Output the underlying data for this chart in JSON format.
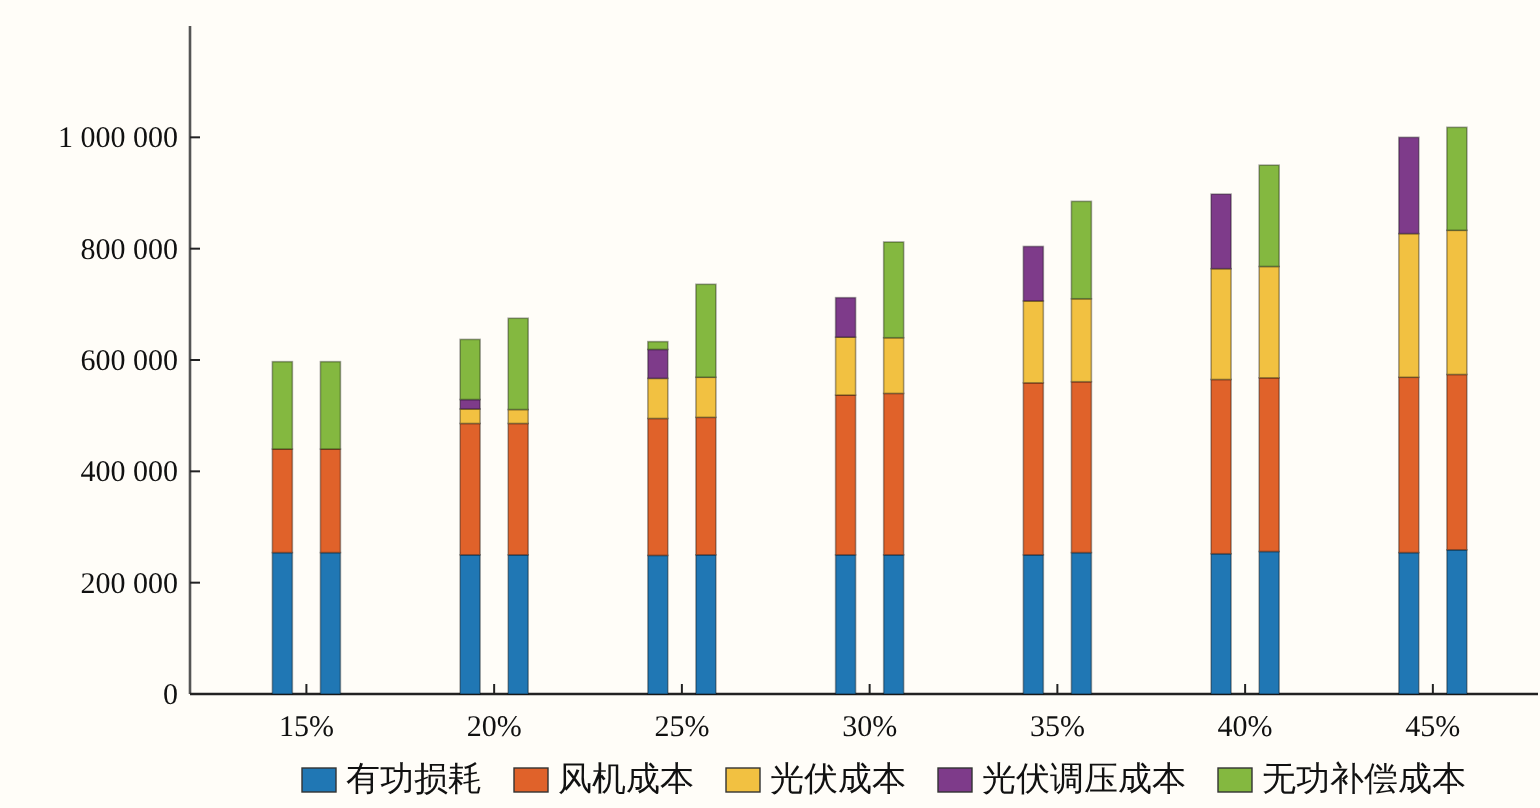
{
  "chart_data": {
    "type": "bar",
    "stacked": true,
    "legend": "bottom",
    "x": [
      14.36,
      15.64,
      19.36,
      20.64,
      24.36,
      25.64,
      29.36,
      30.64,
      34.36,
      35.64,
      39.36,
      40.64,
      44.36,
      45.64
    ],
    "xlim": [
      11.9,
      47.8
    ],
    "xticks": [
      {
        "value": 15,
        "label": "15%"
      },
      {
        "value": 20,
        "label": "20%"
      },
      {
        "value": 25,
        "label": "25%"
      },
      {
        "value": 30,
        "label": "30%"
      },
      {
        "value": 35,
        "label": "35%"
      },
      {
        "value": 40,
        "label": "40%"
      },
      {
        "value": 45,
        "label": "45%"
      }
    ],
    "ylim": [
      0,
      1200000
    ],
    "yticks": [
      0,
      {
        "value": 200000,
        "label": "200 000"
      },
      {
        "value": 400000,
        "label": "400 000"
      },
      {
        "value": 600000,
        "label": "600 000"
      },
      {
        "value": 800000,
        "label": "800 000"
      },
      {
        "value": 1000000,
        "label": "1 000 000"
      }
    ],
    "series": [
      {
        "name": "有功损耗",
        "color": "#2077b4",
        "values": [
          254000,
          254000,
          250000,
          250000,
          249000,
          250000,
          250000,
          250000,
          250000,
          254000,
          252000,
          256000,
          254000,
          259000
        ]
      },
      {
        "name": "风机成本",
        "color": "#e0622a",
        "values": [
          186000,
          186000,
          236000,
          236000,
          246000,
          247000,
          287000,
          290000,
          309000,
          307000,
          313000,
          312000,
          315000,
          315000
        ]
      },
      {
        "name": "光伏成本",
        "color": "#f2c141",
        "values": [
          null,
          null,
          26000,
          25000,
          72000,
          72000,
          104000,
          100000,
          147000,
          149000,
          199000,
          200000,
          258000,
          259000
        ]
      },
      {
        "name": "光伏调压成本",
        "color": "#7e3b8a",
        "values": [
          null,
          null,
          17000,
          null,
          52000,
          null,
          71000,
          null,
          98000,
          null,
          134000,
          null,
          173000,
          null
        ]
      },
      {
        "name": "无功补偿成本",
        "color": "#84b840",
        "values": [
          157000,
          157000,
          108000,
          164000,
          14000,
          167000,
          null,
          172000,
          null,
          175000,
          null,
          182000,
          null,
          185000
        ]
      }
    ]
  }
}
